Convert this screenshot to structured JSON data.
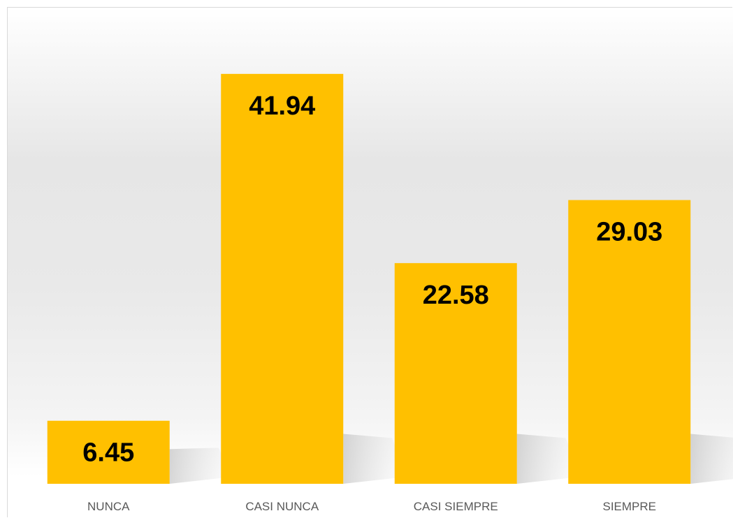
{
  "chart_data": {
    "type": "bar",
    "categories": [
      "NUNCA",
      "CASI NUNCA",
      "CASI SIEMPRE",
      "SIEMPRE"
    ],
    "values": [
      6.45,
      41.94,
      22.58,
      29.03
    ],
    "data_labels": [
      "6.45",
      "41.94",
      "22.58",
      "29.03"
    ],
    "title": "",
    "xlabel": "",
    "ylabel": "",
    "ylim": [
      0,
      45
    ],
    "grid": false,
    "legend": "none",
    "colors": {
      "bar": "#FFC000",
      "data_label": "#000000",
      "category_label": "#595959",
      "border": "#D9D9D9"
    }
  }
}
